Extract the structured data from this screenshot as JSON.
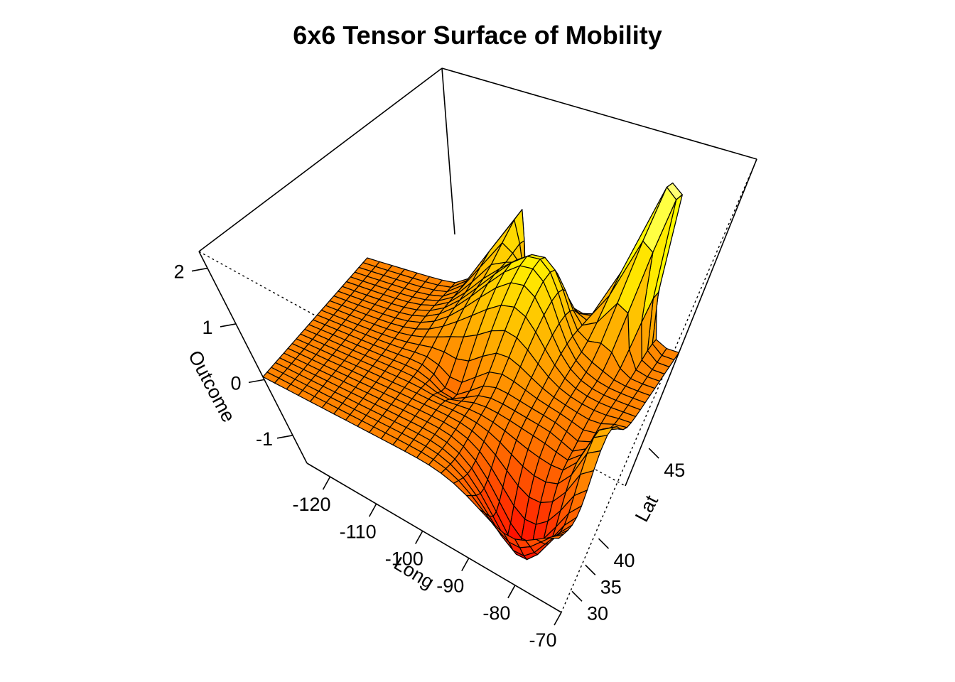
{
  "chart_data": {
    "type": "surface",
    "title": "6x6 Tensor Surface of Mobility",
    "xlabel": "Long",
    "ylabel": "Lat",
    "zlabel": "Outcome",
    "xlim": [
      -125,
      -70
    ],
    "ylim": [
      26,
      50
    ],
    "zlim": [
      -1.5,
      2.3
    ],
    "x_ticks": [
      -120,
      -110,
      -100,
      -90,
      -80,
      -70
    ],
    "y_ticks": [
      30,
      35,
      40,
      45
    ],
    "z_ticks": [
      -1,
      0,
      1,
      2
    ],
    "grid_size": [
      25,
      25
    ],
    "color_palette": "heat",
    "colors": [
      "#FF0000",
      "#FF5500",
      "#FFAA00",
      "#FFFF00",
      "#FFFFB0"
    ],
    "surface_features": [
      {
        "kind": "peak",
        "long": -80,
        "lat": 48.5,
        "outcome": 2.2
      },
      {
        "kind": "ridge",
        "long": -95,
        "lat": 44,
        "outcome": 1.2
      },
      {
        "kind": "bump",
        "long": -103,
        "lat": 49,
        "outcome": 1.0
      },
      {
        "kind": "dip",
        "long": -99,
        "lat": 38,
        "outcome": -0.3
      },
      {
        "kind": "dip",
        "long": -75,
        "lat": 36.5,
        "outcome": -0.15
      },
      {
        "kind": "trough",
        "long": -80,
        "lat": 29.5,
        "outcome": -1.3
      },
      {
        "kind": "rise",
        "long": -71,
        "lat": 35,
        "outcome": 0.7
      }
    ]
  }
}
